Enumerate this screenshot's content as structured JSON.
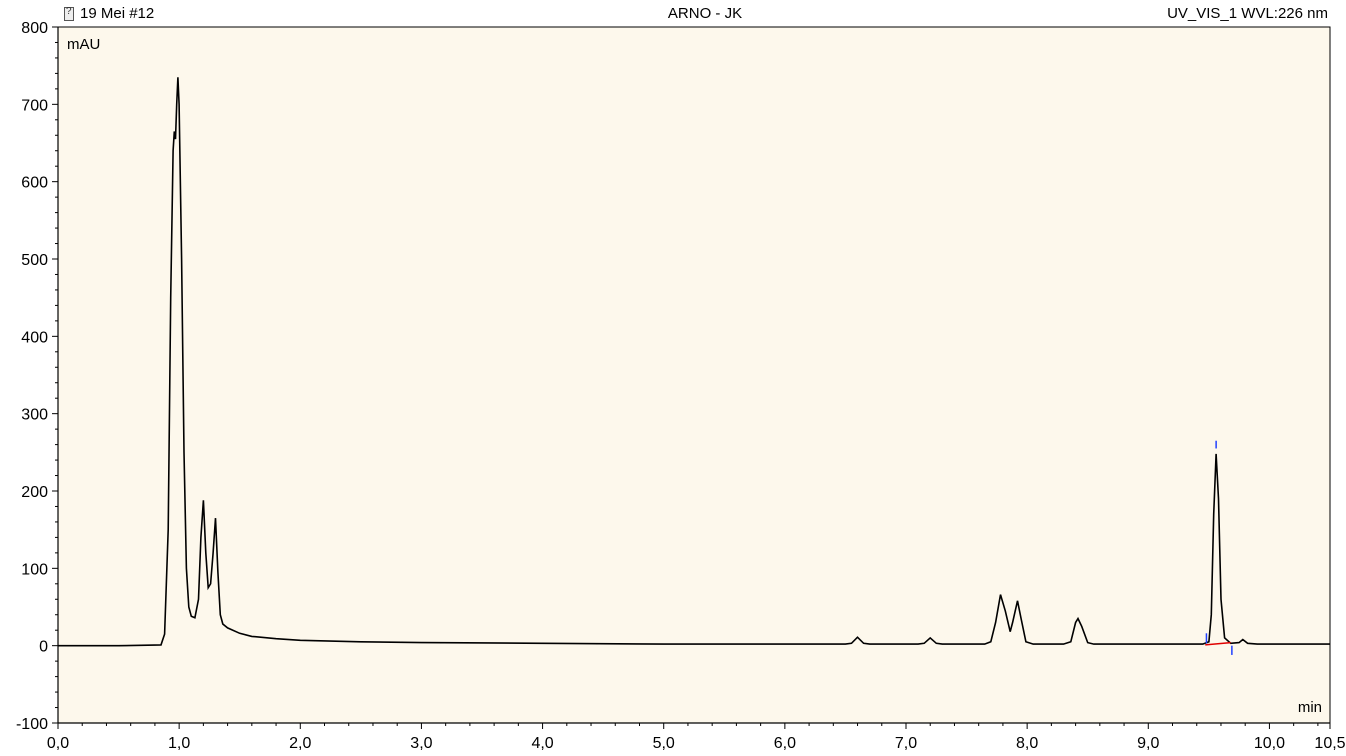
{
  "header": {
    "left": "19 Mei #12",
    "center": "ARNO - JK",
    "right": "UV_VIS_1 WVL:226 nm",
    "left_icon": "document-icon"
  },
  "colors": {
    "plot_background": "#fdf8ec",
    "trace": "#000000",
    "baseline": "#e00000",
    "marker": "#2040ff"
  },
  "chart_data": {
    "type": "line",
    "y_unit_label": "mAU",
    "x_unit_label": "min",
    "xlim": [
      0,
      10.5
    ],
    "ylim": [
      -100,
      800
    ],
    "x_ticks": [
      {
        "v": 0,
        "label": "0,0"
      },
      {
        "v": 1,
        "label": "1,0"
      },
      {
        "v": 2,
        "label": "2,0"
      },
      {
        "v": 3,
        "label": "3,0"
      },
      {
        "v": 4,
        "label": "4,0"
      },
      {
        "v": 5,
        "label": "5,0"
      },
      {
        "v": 6,
        "label": "6,0"
      },
      {
        "v": 7,
        "label": "7,0"
      },
      {
        "v": 8,
        "label": "8,0"
      },
      {
        "v": 9,
        "label": "9,0"
      },
      {
        "v": 10,
        "label": "10,0"
      },
      {
        "v": 10.5,
        "label": "10,5"
      }
    ],
    "y_ticks": [
      {
        "v": -100,
        "label": "-100"
      },
      {
        "v": 0,
        "label": "0"
      },
      {
        "v": 100,
        "label": "100"
      },
      {
        "v": 200,
        "label": "200"
      },
      {
        "v": 300,
        "label": "300"
      },
      {
        "v": 400,
        "label": "400"
      },
      {
        "v": 500,
        "label": "500"
      },
      {
        "v": 600,
        "label": "600"
      },
      {
        "v": 700,
        "label": "700"
      },
      {
        "v": 800,
        "label": "800"
      }
    ],
    "grid": false,
    "trace": [
      [
        0.0,
        0
      ],
      [
        0.5,
        0
      ],
      [
        0.85,
        1
      ],
      [
        0.88,
        15
      ],
      [
        0.91,
        150
      ],
      [
        0.93,
        450
      ],
      [
        0.95,
        640
      ],
      [
        0.96,
        665
      ],
      [
        0.97,
        655
      ],
      [
        0.98,
        700
      ],
      [
        0.99,
        735
      ],
      [
        1.0,
        700
      ],
      [
        1.02,
        500
      ],
      [
        1.04,
        250
      ],
      [
        1.06,
        100
      ],
      [
        1.08,
        50
      ],
      [
        1.1,
        38
      ],
      [
        1.13,
        36
      ],
      [
        1.16,
        60
      ],
      [
        1.18,
        140
      ],
      [
        1.2,
        188
      ],
      [
        1.22,
        120
      ],
      [
        1.24,
        75
      ],
      [
        1.26,
        80
      ],
      [
        1.28,
        120
      ],
      [
        1.3,
        165
      ],
      [
        1.32,
        95
      ],
      [
        1.34,
        40
      ],
      [
        1.36,
        28
      ],
      [
        1.4,
        23
      ],
      [
        1.5,
        16
      ],
      [
        1.6,
        12
      ],
      [
        1.8,
        9
      ],
      [
        2.0,
        7
      ],
      [
        2.5,
        5
      ],
      [
        3.0,
        4
      ],
      [
        4.0,
        3
      ],
      [
        5.0,
        2
      ],
      [
        6.0,
        2
      ],
      [
        6.5,
        2
      ],
      [
        6.55,
        3
      ],
      [
        6.6,
        11
      ],
      [
        6.65,
        3
      ],
      [
        6.7,
        2
      ],
      [
        7.1,
        2
      ],
      [
        7.15,
        3
      ],
      [
        7.2,
        10
      ],
      [
        7.25,
        3
      ],
      [
        7.3,
        2
      ],
      [
        7.65,
        2
      ],
      [
        7.7,
        5
      ],
      [
        7.74,
        30
      ],
      [
        7.78,
        66
      ],
      [
        7.82,
        45
      ],
      [
        7.86,
        18
      ],
      [
        7.88,
        30
      ],
      [
        7.92,
        58
      ],
      [
        7.95,
        35
      ],
      [
        7.99,
        5
      ],
      [
        8.05,
        2
      ],
      [
        8.3,
        2
      ],
      [
        8.36,
        5
      ],
      [
        8.4,
        30
      ],
      [
        8.42,
        35
      ],
      [
        8.45,
        25
      ],
      [
        8.5,
        4
      ],
      [
        8.55,
        2
      ],
      [
        9.45,
        2
      ],
      [
        9.5,
        5
      ],
      [
        9.52,
        40
      ],
      [
        9.54,
        170
      ],
      [
        9.56,
        248
      ],
      [
        9.58,
        190
      ],
      [
        9.6,
        60
      ],
      [
        9.63,
        10
      ],
      [
        9.68,
        3
      ],
      [
        9.75,
        4
      ],
      [
        9.78,
        8
      ],
      [
        9.82,
        3
      ],
      [
        9.9,
        2
      ],
      [
        10.5,
        2
      ]
    ],
    "integration_baseline": [
      [
        9.47,
        1
      ],
      [
        9.68,
        4
      ]
    ],
    "peak_markers": [
      {
        "x": 9.48,
        "y0": 3,
        "y1": 16,
        "kind": "start"
      },
      {
        "x": 9.56,
        "y0": 255,
        "y1": 265,
        "kind": "apex"
      },
      {
        "x": 9.69,
        "y0": -12,
        "y1": 0,
        "kind": "end"
      }
    ]
  }
}
